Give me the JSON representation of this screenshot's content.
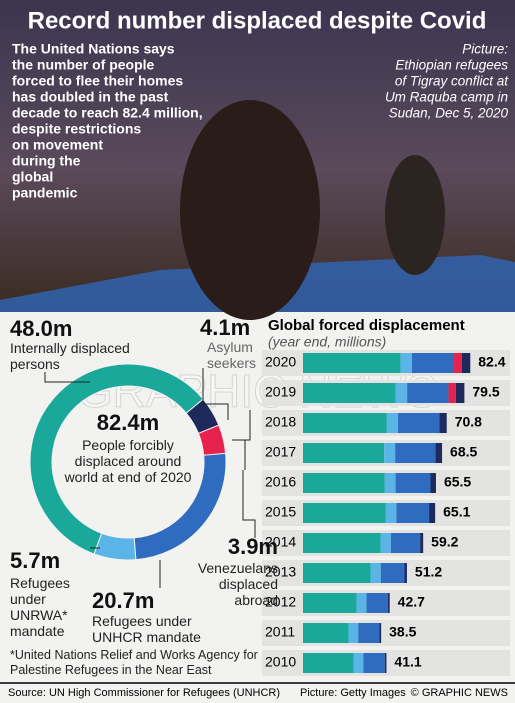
{
  "title": "Record number displaced despite Covid",
  "intro_lines": [
    "The United Nations says",
    "the number of people",
    "forced to flee their homes",
    "has doubled in the past",
    "decade to reach 82.4 million,",
    "despite restrictions",
    "on movement",
    "during the",
    "global",
    "pandemic"
  ],
  "photo_caption_lines": [
    "Picture:",
    "Ethiopian refugees",
    "of Tigray conflict at",
    "Um Raquba camp in",
    "Sudan, Dec 5, 2020"
  ],
  "watermark": "GRAPHIC NEWS",
  "chart_data": [
    {
      "type": "donut",
      "categories": [
        "Asylum seekers",
        "Venezuelans displaced abroad",
        "Refugees under UNHCR mandate",
        "Refugees under UNRWA* mandate",
        "Internally displaced persons"
      ],
      "values": [
        4.1,
        3.9,
        20.7,
        5.7,
        48.0
      ],
      "value_labels": [
        "4.1m",
        "3.9m",
        "20.7m",
        "5.7m",
        "48.0m"
      ],
      "colors": [
        "#1f2a5c",
        "#e8224f",
        "#2f6cbf",
        "#5ab4e5",
        "#1aa89a"
      ],
      "center_value": 82.4,
      "center_value_label": "82.4m",
      "center_text": "People forcibly displaced around world at end of 2020"
    },
    {
      "type": "stacked-bar",
      "orientation": "horizontal",
      "title": "Global forced displacement",
      "subtitle": "(year end, millions)",
      "categories": [
        "2020",
        "2019",
        "2018",
        "2017",
        "2016",
        "2015",
        "2014",
        "2013",
        "2012",
        "2011",
        "2010"
      ],
      "series": [
        {
          "color": "#1aa89a",
          "values": [
            48.0,
            45.7,
            41.3,
            40.0,
            40.3,
            40.8,
            38.2,
            33.3,
            26.4,
            22.4,
            25.0
          ]
        },
        {
          "color": "#5ab4e5",
          "values": [
            5.7,
            5.6,
            5.5,
            5.4,
            5.3,
            5.2,
            5.1,
            5.0,
            4.9,
            4.8,
            4.8
          ]
        },
        {
          "color": "#2f6cbf",
          "values": [
            20.7,
            20.4,
            20.4,
            19.9,
            17.2,
            16.1,
            14.4,
            11.7,
            10.5,
            10.4,
            10.5
          ]
        },
        {
          "color": "#e8224f",
          "values": [
            3.9,
            3.6,
            null,
            null,
            null,
            null,
            null,
            null,
            null,
            null,
            null
          ]
        },
        {
          "color": "#1f2a5c",
          "values": [
            4.1,
            4.2,
            3.6,
            3.2,
            2.7,
            3.0,
            1.5,
            1.2,
            0.9,
            0.9,
            0.8
          ]
        }
      ],
      "totals": [
        82.4,
        79.5,
        70.8,
        68.5,
        65.5,
        65.1,
        59.2,
        51.2,
        42.7,
        38.5,
        41.1
      ]
    }
  ],
  "footnote": "*United Nations Relief and Works Agency for Palestine Refugees in the Near East",
  "source": "Source: UN High Commissioner for Refugees (UNHCR)",
  "picture_credit": "Picture: Getty Images",
  "copyright": "© GRAPHIC NEWS"
}
